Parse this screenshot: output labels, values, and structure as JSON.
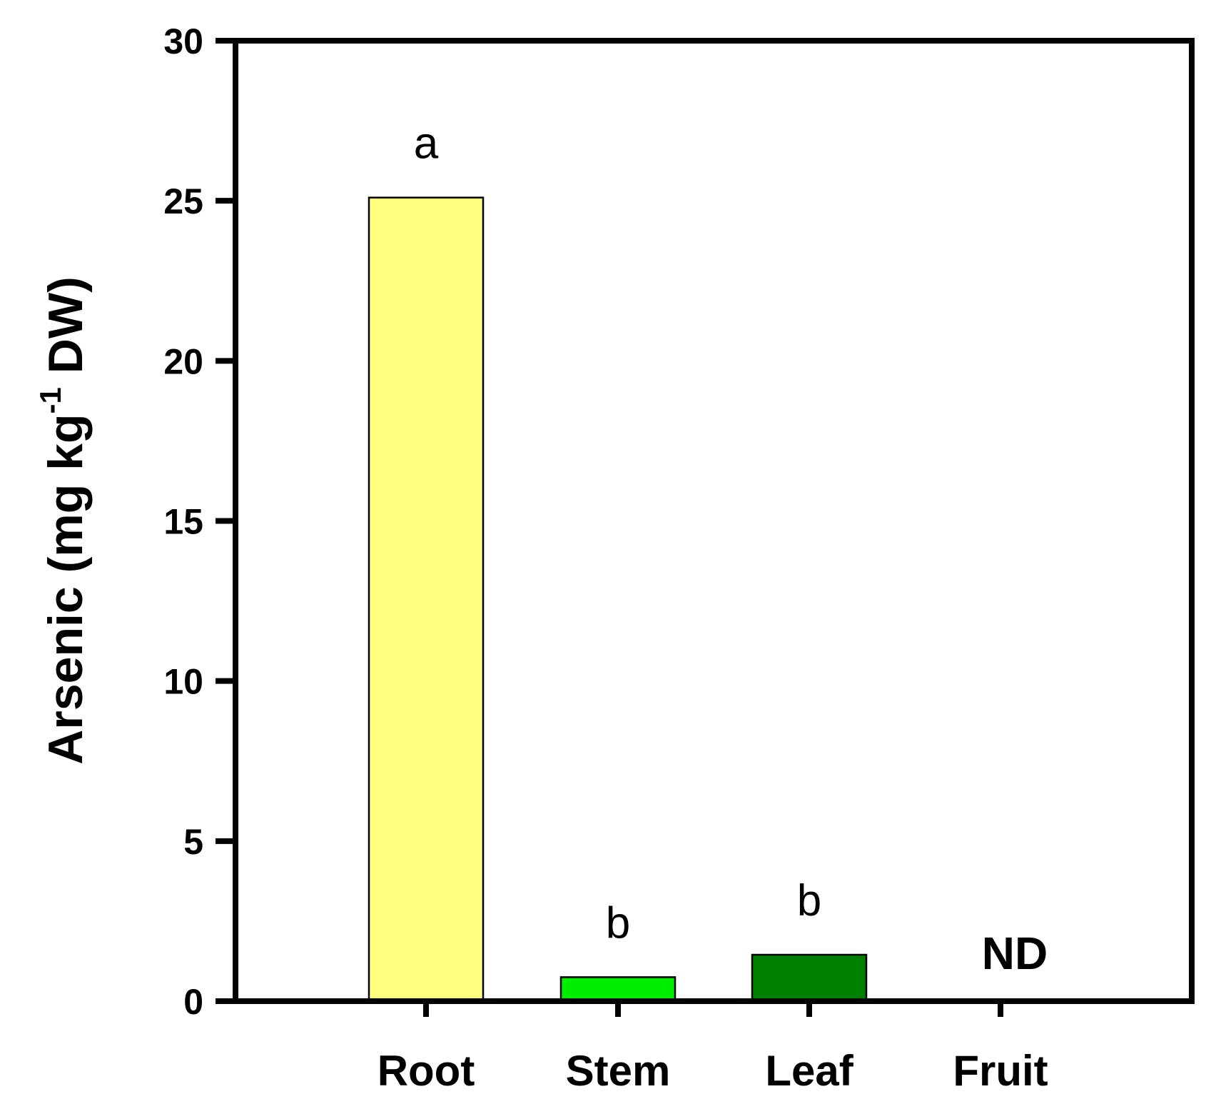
{
  "chart_data": {
    "type": "bar",
    "categories": [
      "Root",
      "Stem",
      "Leaf",
      "Fruit"
    ],
    "values": [
      25.1,
      0.75,
      1.45,
      null
    ],
    "colors": [
      "#ffff80",
      "#00ee00",
      "#008000",
      "#ffffff"
    ],
    "bar_labels": [
      "a",
      "b",
      "b",
      "ND"
    ],
    "ylabel_main": "Arsenic (mg kg",
    "ylabel_sup": "-1",
    "ylabel_end": " DW)",
    "ylim": [
      0,
      30
    ],
    "yticks": [
      0,
      5,
      10,
      15,
      20,
      25,
      30
    ],
    "grid": false
  }
}
